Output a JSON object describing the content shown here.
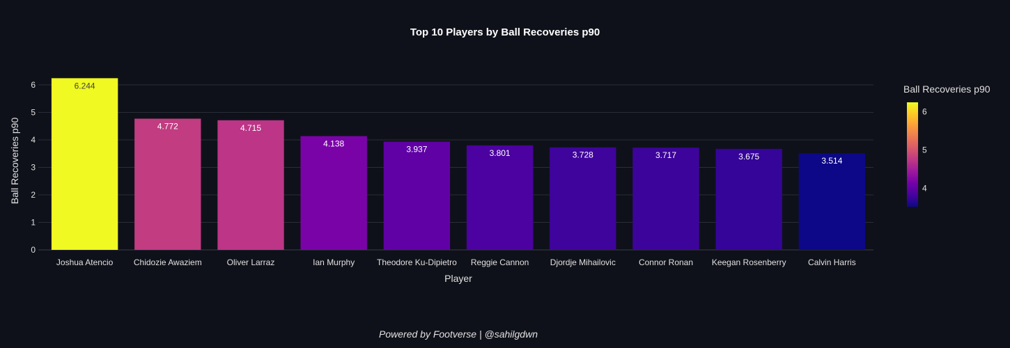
{
  "chart_data": {
    "type": "bar",
    "title": "Top 10 Players by Ball Recoveries p90",
    "xlabel": "Player",
    "ylabel": "Ball Recoveries p90",
    "ylim": [
      0,
      6.3
    ],
    "yticks": [
      0,
      1,
      2,
      3,
      4,
      5,
      6
    ],
    "grid": true,
    "categories": [
      "Joshua Atencio",
      "Chidozie Awaziem",
      "Oliver Larraz",
      "Ian Murphy",
      "Theodore Ku-Dipietro",
      "Reggie Cannon",
      "Djordje Mihailovic",
      "Connor Ronan",
      "Keegan Rosenberry",
      "Calvin Harris"
    ],
    "values": [
      6.244,
      4.772,
      4.715,
      4.138,
      3.937,
      3.801,
      3.728,
      3.717,
      3.675,
      3.514
    ],
    "value_labels": [
      "6.244",
      "4.772",
      "4.715",
      "4.138",
      "3.937",
      "3.801",
      "3.728",
      "3.717",
      "3.675",
      "3.514"
    ],
    "bar_colors": [
      "#f0f921",
      "#c13c81",
      "#bc3587",
      "#7a03a8",
      "#6001a6",
      "#4c02a1",
      "#3f049c",
      "#3d049b",
      "#350498",
      "#0d0887"
    ],
    "label_colors": [
      "#444444",
      "#ffffff",
      "#ffffff",
      "#ffffff",
      "#ffffff",
      "#ffffff",
      "#ffffff",
      "#ffffff",
      "#ffffff",
      "#ffffff"
    ],
    "colorbar": {
      "title": "Ball Recoveries p90",
      "range": [
        3.514,
        6.244
      ],
      "ticks": [
        4,
        5,
        6
      ],
      "colorscale": [
        "#0d0887",
        "#46039f",
        "#7201a8",
        "#9c179e",
        "#bd3786",
        "#d8576b",
        "#ed7953",
        "#fb9f3a",
        "#fdca26",
        "#f0f921"
      ]
    }
  },
  "footer": {
    "text": "Powered by Footverse | @sahilgdwn"
  }
}
